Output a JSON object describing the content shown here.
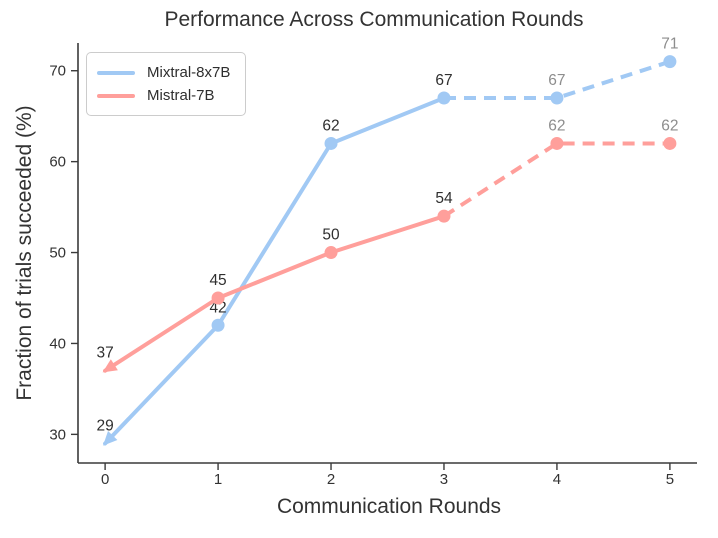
{
  "chart_data": {
    "type": "line",
    "title": "Performance Across Communication Rounds",
    "xlabel": "Communication Rounds",
    "ylabel": "Fraction of trials succeeded (%)",
    "x": [
      0,
      1,
      2,
      3,
      4,
      5
    ],
    "xtick_labels": [
      "0",
      "1",
      "2",
      "3",
      "4",
      "5"
    ],
    "ytick_values": [
      30,
      40,
      50,
      60,
      70
    ],
    "xlim": [
      -0.24,
      5.24
    ],
    "ylim": [
      26.85,
      73.05
    ],
    "grid": false,
    "legend_position": "upper-left",
    "series": [
      {
        "name": "Mixtral-8x7B",
        "color": "#A1C9F4",
        "values": [
          29,
          42,
          62,
          67,
          67,
          71
        ],
        "data_labels": [
          "29",
          "42",
          "62",
          "67",
          "67",
          "71"
        ],
        "solid_until_x": 3,
        "start_marker": "arrow"
      },
      {
        "name": "Mistral-7B",
        "color": "#FF9F9B",
        "values": [
          37,
          45,
          50,
          54,
          62,
          62
        ],
        "data_labels": [
          "37",
          "45",
          "50",
          "54",
          "62",
          "62"
        ],
        "solid_until_x": 3,
        "start_marker": "arrow"
      }
    ],
    "colors": {
      "label_solid": "#2f2f2f",
      "label_dashed": "#8d8d8d",
      "axis": "#3a3a3a",
      "tick_text": "#333333"
    }
  }
}
